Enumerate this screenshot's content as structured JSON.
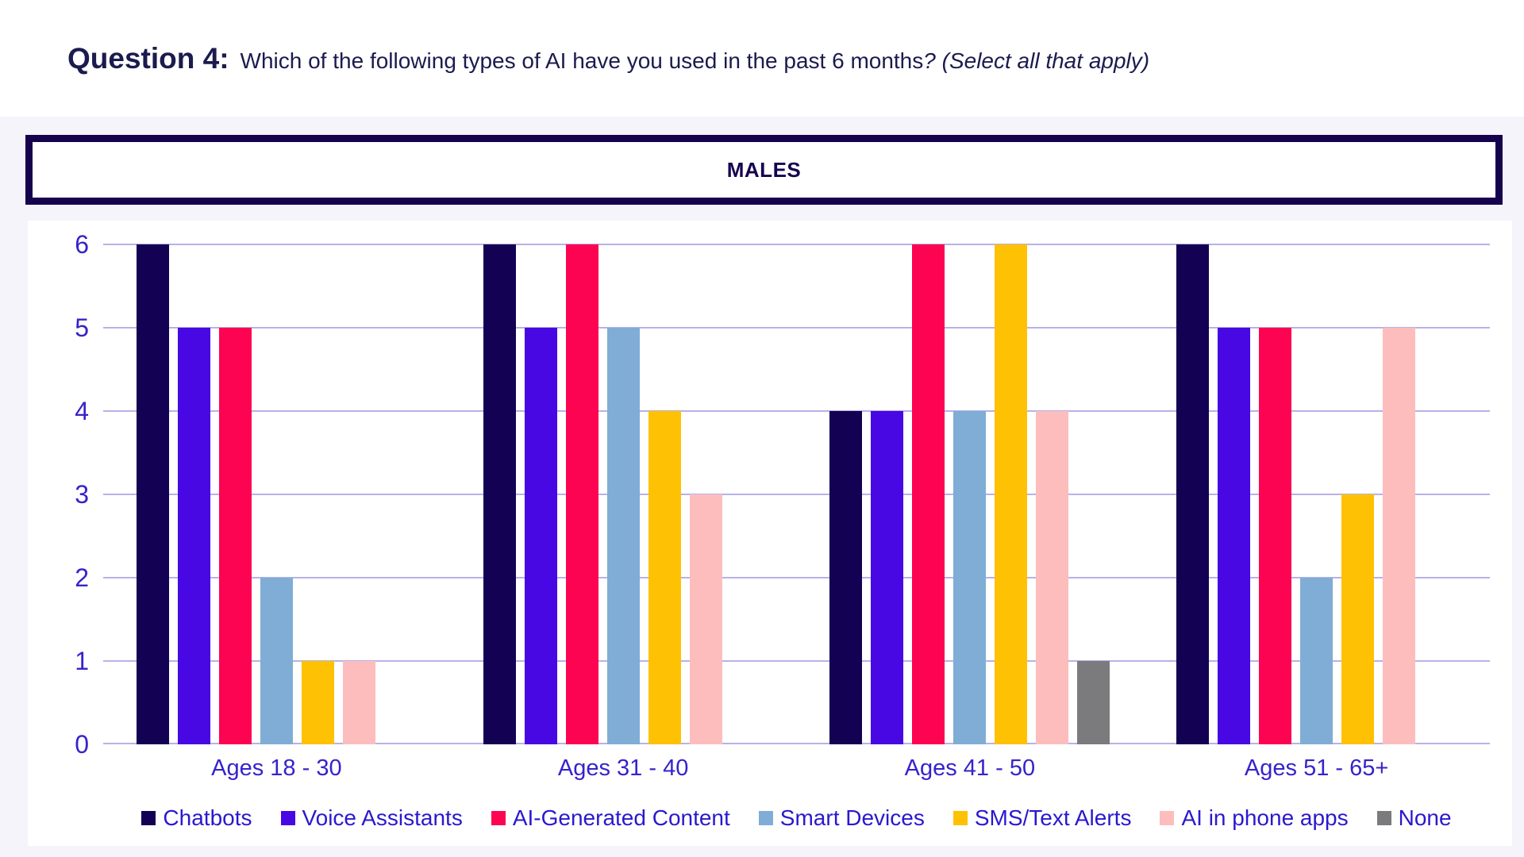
{
  "page": {
    "title": {
      "prefix": "Question 4:",
      "question": "Which of the following types of AI have you used in the past 6 months",
      "suffix_italic": "? (Select all that apply)"
    },
    "section_header": "MALES"
  },
  "colors": {
    "page_bg": "#f5f4fa",
    "card_bg": "#ffffff",
    "banner_border": "#16024d",
    "title_text": "#1b1b4e",
    "axis_text": "#3623cb",
    "legend_text": "#2a18cf",
    "gridline": "#b7b2e8"
  },
  "chart_data": {
    "type": "bar",
    "title": "MALES",
    "categories": [
      "Ages 18 - 30",
      "Ages 31 - 40",
      "Ages 41 - 50",
      "Ages 51 - 65+"
    ],
    "series": [
      {
        "name": "Chatbots",
        "color": "#130253",
        "values": [
          6,
          6,
          4,
          6
        ]
      },
      {
        "name": "Voice Assistants",
        "color": "#4708e3",
        "values": [
          5,
          5,
          4,
          5
        ]
      },
      {
        "name": "AI-Generated Content",
        "color": "#fc0451",
        "values": [
          5,
          6,
          6,
          5
        ]
      },
      {
        "name": "Smart Devices",
        "color": "#7fadd6",
        "values": [
          2,
          5,
          4,
          2
        ]
      },
      {
        "name": "SMS/Text Alerts",
        "color": "#fec103",
        "values": [
          1,
          4,
          6,
          3
        ]
      },
      {
        "name": "AI in phone apps",
        "color": "#fdbdbd",
        "values": [
          1,
          3,
          4,
          5
        ]
      },
      {
        "name": "None",
        "color": "#7b7a7c",
        "values": [
          0,
          0,
          1,
          0
        ]
      }
    ],
    "xlabel": "",
    "ylabel": "",
    "ylim": [
      0,
      6
    ],
    "yticks": [
      0,
      1,
      2,
      3,
      4,
      5,
      6
    ],
    "grid": true,
    "legend_position": "bottom"
  }
}
